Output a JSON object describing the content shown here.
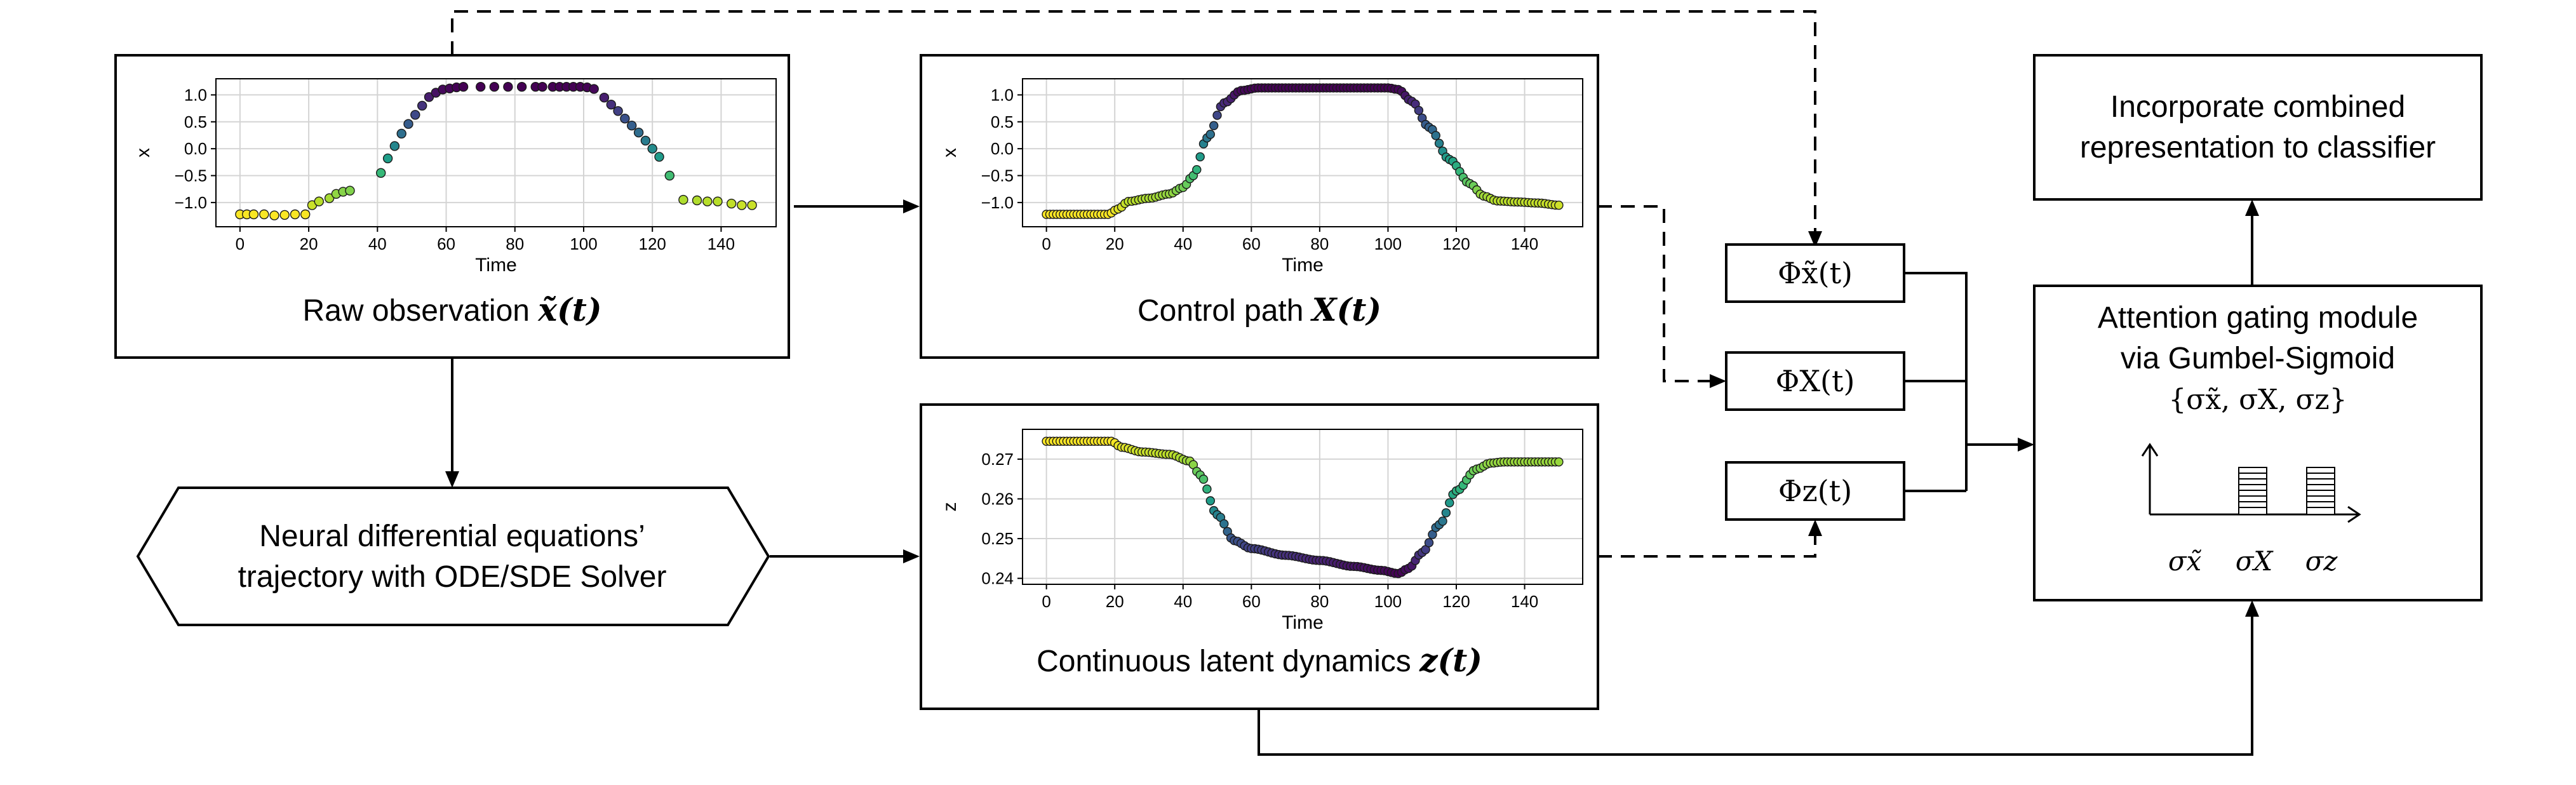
{
  "nodes": {
    "raw": {
      "label": "Raw observation ",
      "math": "x̃(t)"
    },
    "control": {
      "label": "Control path ",
      "math": "X(t)"
    },
    "latent": {
      "label": "Continuous latent dynamics ",
      "math": "z(t)"
    },
    "neural": {
      "line1": "Neural differential equations’",
      "line2": "trajectory with ODE/SDE Solver"
    },
    "phi_raw": "Φx̃(t)",
    "phi_control": "ΦX(t)",
    "phi_latent": "Φz(t)",
    "attention": {
      "line1": "Attention gating module",
      "line2": "via Gumbel-Sigmoid",
      "line3": "{σx̃, σX, σz}",
      "bar_labels": [
        "σx̃",
        "σX",
        "σz"
      ]
    },
    "classifier": {
      "line1": "Incorporate combined",
      "line2": "representation to classifier"
    }
  },
  "chart_data": [
    {
      "type": "scatter",
      "name_of_node": "raw observation plot",
      "xlabel": "Time",
      "ylabel": "x",
      "x_ticks": [
        0,
        20,
        40,
        60,
        80,
        100,
        120,
        140
      ],
      "y_ticks": [
        1.0,
        0.5,
        0.0,
        -0.5,
        -1.0
      ],
      "y_tick_labels": [
        "1.0",
        "0.5",
        "0.0",
        "−0.5",
        "−1.0"
      ],
      "xlim": [
        -7,
        156
      ],
      "ylim": [
        -1.45,
        1.3
      ],
      "grid": true,
      "colormap": "viridis",
      "x": [
        0,
        2,
        4,
        7,
        10,
        13,
        16,
        19,
        21,
        23,
        26,
        28,
        30,
        32,
        41,
        43,
        45,
        47,
        49,
        51,
        53,
        55,
        57,
        59,
        61,
        63,
        65,
        70,
        74,
        78,
        82,
        86,
        88,
        91,
        93,
        95,
        97,
        99,
        101,
        103,
        106,
        108,
        110,
        112,
        114,
        116,
        118,
        120,
        122,
        125,
        129,
        133,
        136,
        139,
        143,
        146,
        149
      ],
      "y": [
        -1.22,
        -1.22,
        -1.22,
        -1.22,
        -1.24,
        -1.23,
        -1.22,
        -1.22,
        -1.05,
        -0.98,
        -0.92,
        -0.84,
        -0.8,
        -0.78,
        -0.45,
        -0.18,
        0.05,
        0.28,
        0.46,
        0.63,
        0.8,
        0.96,
        1.04,
        1.1,
        1.12,
        1.14,
        1.15,
        1.15,
        1.15,
        1.15,
        1.15,
        1.15,
        1.15,
        1.15,
        1.15,
        1.15,
        1.15,
        1.15,
        1.14,
        1.11,
        0.95,
        0.82,
        0.7,
        0.56,
        0.43,
        0.3,
        0.15,
        0.0,
        -0.15,
        -0.5,
        -0.95,
        -0.96,
        -0.98,
        -0.98,
        -1.02,
        -1.05,
        -1.05
      ]
    },
    {
      "type": "scatter",
      "name_of_node": "control path plot",
      "xlabel": "Time",
      "ylabel": "x",
      "x_ticks": [
        0,
        20,
        40,
        60,
        80,
        100,
        120,
        140
      ],
      "y_ticks": [
        1.0,
        0.5,
        0.0,
        -0.5,
        -1.0
      ],
      "y_tick_labels": [
        "1.0",
        "0.5",
        "0.0",
        "−0.5",
        "−1.0"
      ],
      "xlim": [
        -7,
        157
      ],
      "ylim": [
        -1.45,
        1.3
      ],
      "grid": true,
      "colormap": "viridis",
      "x_start": 0,
      "x_end": 150,
      "x_step": 1,
      "y_knots_x": [
        0,
        18,
        21,
        24,
        30,
        36,
        40,
        43,
        47,
        52,
        57,
        62,
        100,
        103,
        107,
        112,
        118,
        124,
        128,
        132,
        138,
        144,
        150
      ],
      "y_knots_y": [
        -1.22,
        -1.22,
        -1.12,
        -0.98,
        -0.92,
        -0.84,
        -0.72,
        -0.5,
        0.2,
        0.85,
        1.08,
        1.13,
        1.13,
        1.1,
        0.88,
        0.4,
        -0.2,
        -0.65,
        -0.88,
        -0.97,
        -0.99,
        -1.01,
        -1.05
      ]
    },
    {
      "type": "scatter",
      "name_of_node": "latent dynamics plot",
      "xlabel": "Time",
      "ylabel": "z",
      "x_ticks": [
        0,
        20,
        40,
        60,
        80,
        100,
        120,
        140
      ],
      "y_ticks": [
        0.27,
        0.26,
        0.25,
        0.24
      ],
      "y_tick_labels": [
        "0.27",
        "0.26",
        "0.25",
        "0.24"
      ],
      "xlim": [
        -7,
        157
      ],
      "ylim": [
        0.2385,
        0.2775
      ],
      "grid": true,
      "colormap": "viridis_r",
      "x_start": 0,
      "x_end": 150,
      "x_step": 1,
      "y_knots_x": [
        0,
        19,
        22,
        28,
        36,
        42,
        45,
        50,
        55,
        60,
        70,
        80,
        90,
        98,
        103,
        106,
        110,
        115,
        120,
        126,
        130,
        134,
        150
      ],
      "y_knots_y": [
        0.2745,
        0.2745,
        0.273,
        0.2718,
        0.2712,
        0.2695,
        0.266,
        0.256,
        0.2495,
        0.2475,
        0.2458,
        0.2445,
        0.243,
        0.242,
        0.2412,
        0.2425,
        0.2465,
        0.2535,
        0.262,
        0.2675,
        0.269,
        0.2693,
        0.2693
      ]
    }
  ],
  "colors": {
    "stroke": "#000000",
    "grid": "#d4d4d4",
    "bar_fill": "#ffffff"
  }
}
